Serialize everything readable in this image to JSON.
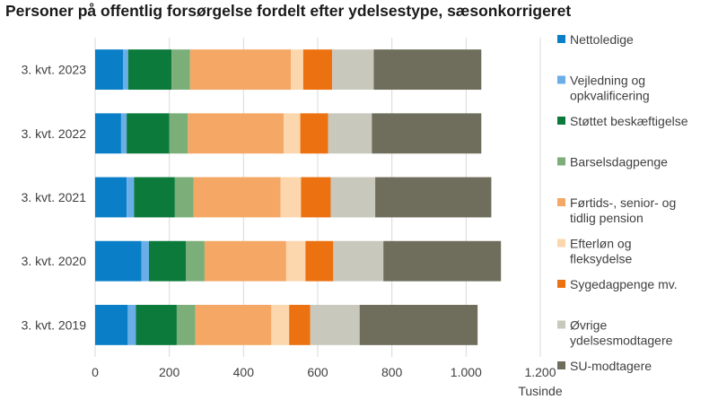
{
  "chart_data": {
    "type": "bar",
    "orientation": "horizontal",
    "stacked": true,
    "title": "Personer på offentlig forsørgelse fordelt efter ydelsestype, sæsonkorrigeret",
    "xlabel": "Tusinde",
    "ylabel": "",
    "xlim": [
      0,
      1200
    ],
    "x_ticks": [
      0,
      200,
      400,
      600,
      800,
      1000,
      1200
    ],
    "x_tick_labels": [
      "0",
      "200",
      "400",
      "600",
      "800",
      "1.000",
      "1.200"
    ],
    "grid": "vertical",
    "legend_position": "right",
    "categories": [
      "3. kvt. 2023",
      "3. kvt. 2022",
      "3. kvt. 2021",
      "3. kvt. 2020",
      "3. kvt. 2019"
    ],
    "series": [
      {
        "name": "Nettoledige",
        "color": "#0a7fc7",
        "values": [
          75,
          70,
          85,
          125,
          88
        ]
      },
      {
        "name": "Vejledning og opkvalificering",
        "color": "#6aaee8",
        "values": [
          14,
          15,
          20,
          20,
          22
        ]
      },
      {
        "name": "Støttet beskæftigelse",
        "color": "#0b7a3b",
        "values": [
          117,
          115,
          110,
          100,
          110
        ]
      },
      {
        "name": "Barselsdagpenge",
        "color": "#7bae78",
        "values": [
          50,
          50,
          50,
          50,
          50
        ]
      },
      {
        "name": "Førtids-, senior- og tidlig pension",
        "color": "#f5a865",
        "values": [
          272,
          258,
          235,
          220,
          205
        ]
      },
      {
        "name": "Efterløn og fleksydelse",
        "color": "#fcd7ae",
        "values": [
          33,
          45,
          55,
          52,
          48
        ]
      },
      {
        "name": "Sygedagpenge mv.",
        "color": "#ec7111",
        "values": [
          78,
          75,
          80,
          75,
          57
        ]
      },
      {
        "name": "Øvrige ydelsesmodtagere",
        "color": "#c8c8bd",
        "values": [
          112,
          118,
          120,
          135,
          133
        ]
      },
      {
        "name": "SU-modtagere",
        "color": "#6f6e5c",
        "values": [
          290,
          295,
          313,
          317,
          318
        ]
      }
    ]
  }
}
